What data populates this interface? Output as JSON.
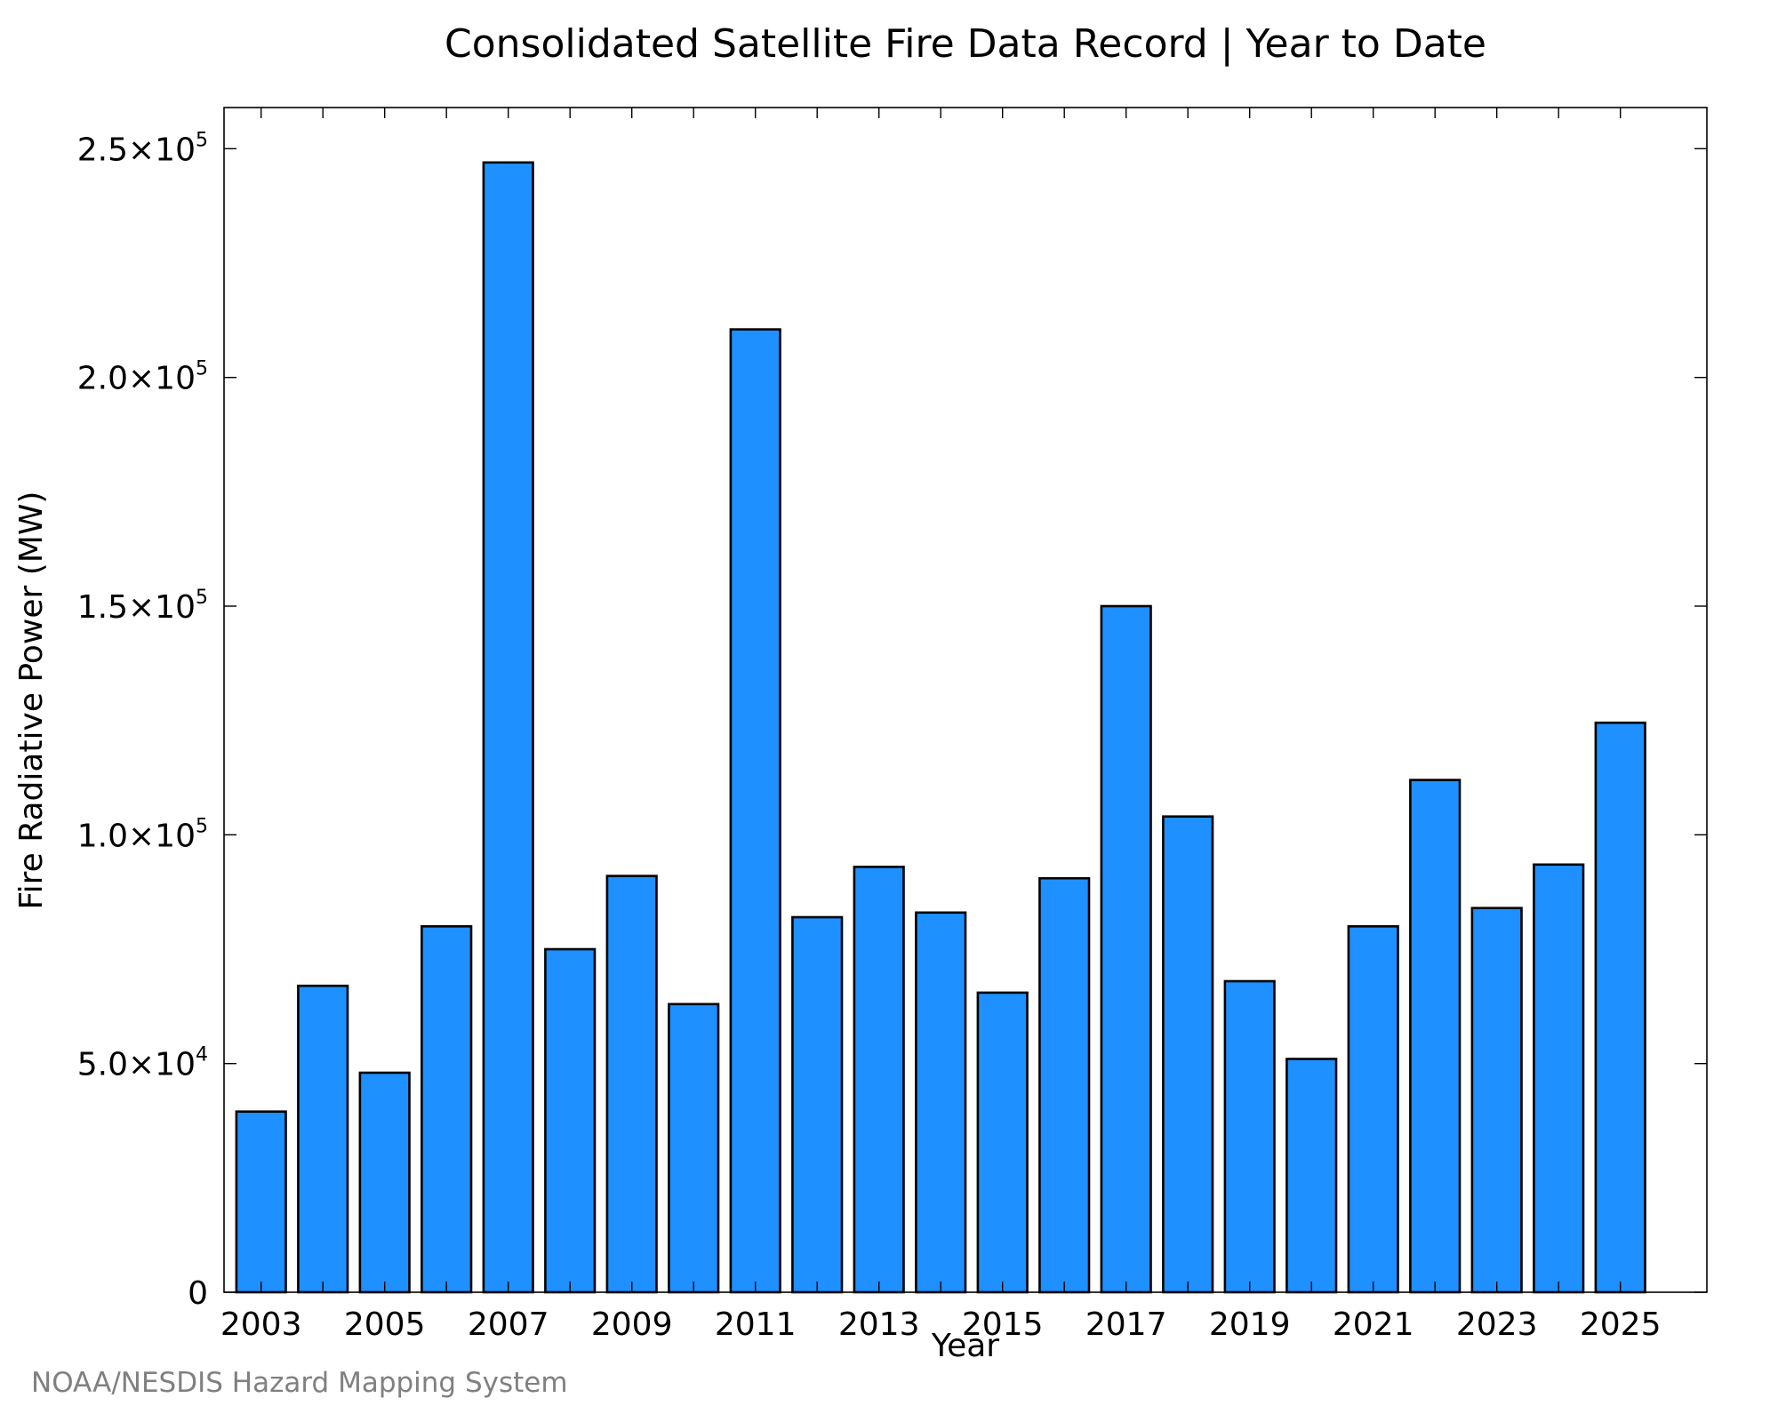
{
  "chart_data": {
    "type": "bar",
    "title": "Consolidated Satellite Fire Data Record | Year to Date",
    "xlabel": "Year",
    "ylabel": "Fire Radiative Power (MW)",
    "categories": [
      "2003",
      "2004",
      "2005",
      "2006",
      "2007",
      "2008",
      "2009",
      "2010",
      "2011",
      "2012",
      "2013",
      "2014",
      "2015",
      "2016",
      "2017",
      "2018",
      "2019",
      "2020",
      "2021",
      "2022",
      "2023",
      "2024",
      "2025"
    ],
    "values": [
      39500,
      67000,
      48000,
      80000,
      247000,
      75000,
      91000,
      63000,
      210500,
      82000,
      93000,
      83000,
      65500,
      90500,
      150000,
      104000,
      68000,
      51000,
      80000,
      112000,
      84000,
      93500,
      124500
    ],
    "x_tick_labels": [
      "2003",
      "2005",
      "2007",
      "2009",
      "2011",
      "2013",
      "2015",
      "2017",
      "2019",
      "2021",
      "2023",
      "2025"
    ],
    "y_ticks": [
      {
        "value": 0,
        "mantissa": "0",
        "exponent": ""
      },
      {
        "value": 50000,
        "mantissa": "5.0×10",
        "exponent": "4"
      },
      {
        "value": 100000,
        "mantissa": "1.0×10",
        "exponent": "5"
      },
      {
        "value": 150000,
        "mantissa": "1.5×10",
        "exponent": "5"
      },
      {
        "value": 200000,
        "mantissa": "2.0×10",
        "exponent": "5"
      },
      {
        "value": 250000,
        "mantissa": "2.5×10",
        "exponent": "5"
      }
    ],
    "ylim": [
      0,
      259000
    ],
    "xlim": [
      2002.4,
      2026.4
    ],
    "grid": false,
    "bar_color": "#1e90ff",
    "bar_edge_color": "#000000"
  },
  "credit": "NOAA/NESDIS Hazard Mapping System"
}
